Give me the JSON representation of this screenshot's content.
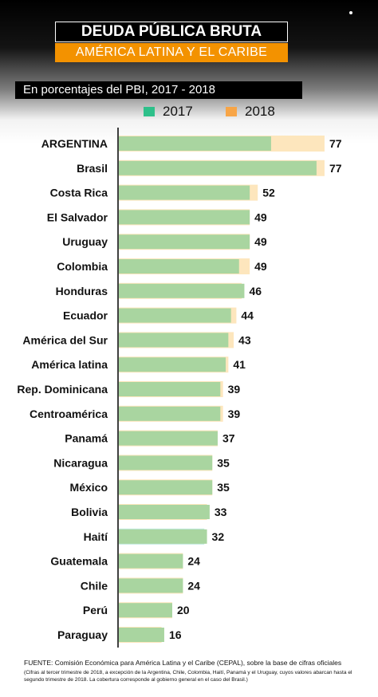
{
  "colors": {
    "series_2017": "#a9d5a0",
    "series_2018": "#fde6bd",
    "legend_2017": "#2ec08a",
    "legend_2018": "#f7a547",
    "haiti_2018": "#c2ebe0",
    "axis": "#000000"
  },
  "header": {
    "title": "DEUDA PÚBLICA BRUTA",
    "subtitle": "AMÉRICA LATINA Y EL CARIBE",
    "units": "En porcentajes del PBI,  2017 - 2018"
  },
  "chart_data": {
    "type": "bar",
    "orientation": "horizontal",
    "xlim": [
      0,
      80
    ],
    "categories": [
      "ARGENTINA",
      "Brasil",
      "Costa Rica",
      "El Salvador",
      "Uruguay",
      "Colombia",
      "Honduras",
      "Ecuador",
      "América del Sur",
      "América latina",
      "Rep. Dominicana",
      "Centroamérica",
      "Panamá",
      "Nicaragua",
      "México",
      "Bolivia",
      "Haití",
      "Guatemala",
      "Chile",
      "Perú",
      "Paraguay"
    ],
    "series": [
      {
        "name": "2017",
        "values": [
          57,
          74,
          49,
          49,
          49,
          45,
          47,
          42,
          41,
          40,
          38,
          38,
          37,
          35,
          35,
          34,
          33,
          24,
          24,
          20,
          17
        ]
      },
      {
        "name": "2018",
        "values": [
          77,
          77,
          52,
          49,
          49,
          49,
          46,
          44,
          43,
          41,
          39,
          39,
          37,
          35,
          35,
          33,
          32,
          24,
          24,
          20,
          16
        ]
      }
    ],
    "value_labels": [
      "77",
      "77",
      "52",
      "49",
      "49",
      "49",
      "46",
      "44",
      "43",
      "41",
      "39",
      "39",
      "37",
      "35",
      "35",
      "33",
      "32",
      "24",
      "24",
      "20",
      "16"
    ],
    "highlight": "ARGENTINA",
    "legend": [
      "2017",
      "2018"
    ],
    "legend_position": "top",
    "grid": false
  },
  "footer": {
    "source": "FUENTE: Comisión Económica para América Latina y el Caribe (CEPAL), sobre la base de cifras oficiales",
    "note": "(Cifras al tercer trimestre de 2018, a excepción de la Argentina, Chile, Colombia, Haití, Panamá y el Uruguay, cuyos valores abarcan hasta el segundo trimestre de 2018. La cobertura corresponde al gobierno general en el caso del Brasil.)"
  }
}
